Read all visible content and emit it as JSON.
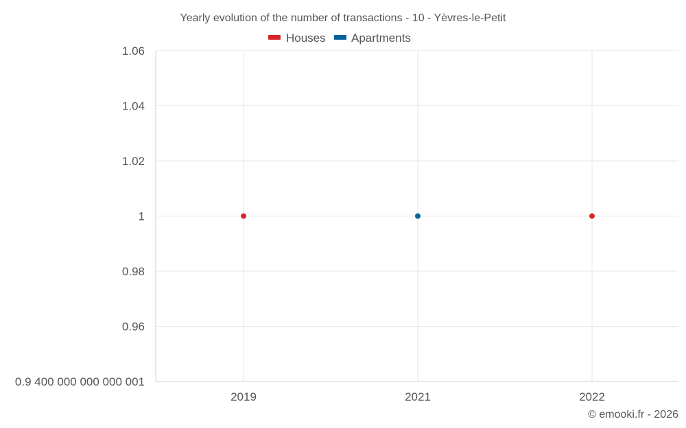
{
  "chart_data": {
    "type": "scatter",
    "title": "Yearly evolution of the number of transactions - 10 - Yèvres-le-Petit",
    "categories": [
      "2019",
      "2021",
      "2022"
    ],
    "series": [
      {
        "name": "Houses",
        "color": "#d62728",
        "values": [
          1,
          null,
          1
        ]
      },
      {
        "name": "Apartments",
        "color": "#08639c",
        "values": [
          null,
          1,
          null
        ]
      }
    ],
    "y_ticks": [
      {
        "value": 0.94,
        "label": "0.9 400 000 000 000 001"
      },
      {
        "value": 0.96,
        "label": "0.96"
      },
      {
        "value": 0.98,
        "label": "0.98"
      },
      {
        "value": 1.0,
        "label": "1"
      },
      {
        "value": 1.02,
        "label": "1.02"
      },
      {
        "value": 1.04,
        "label": "1.04"
      },
      {
        "value": 1.06,
        "label": "1.06"
      }
    ],
    "ylim": [
      0.94,
      1.06
    ],
    "grid": true,
    "legend_position": "top-center"
  },
  "credit": "© emooki.fr - 2026"
}
